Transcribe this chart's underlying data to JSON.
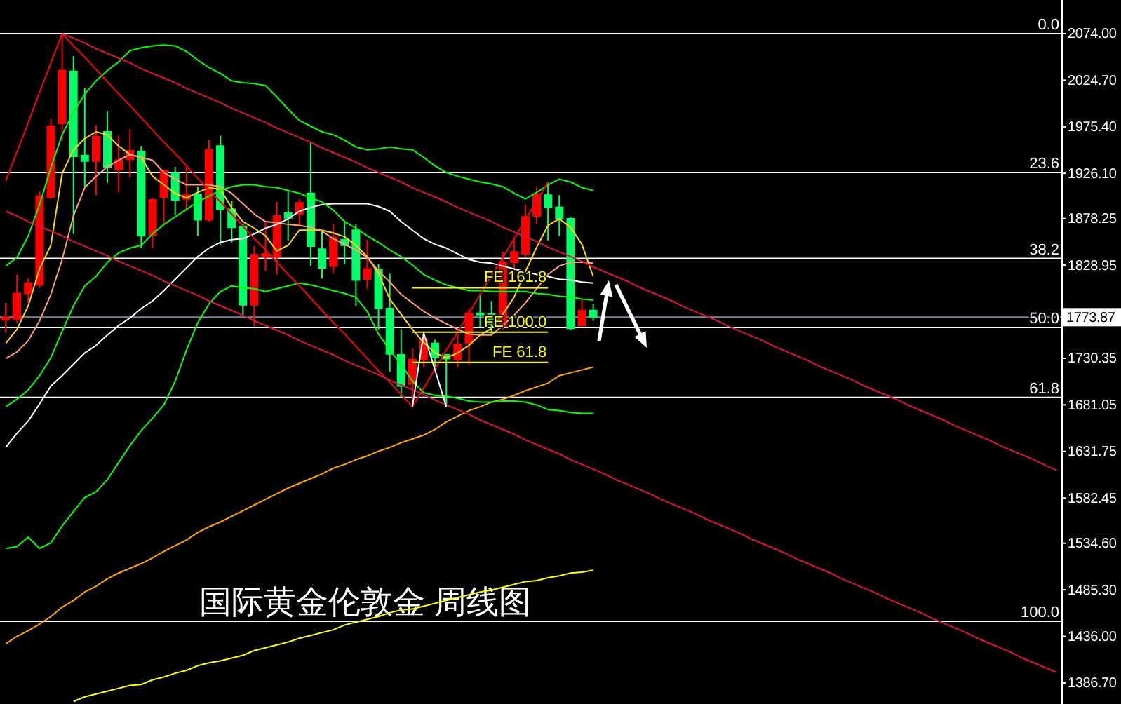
{
  "chart_data": {
    "type": "candlestick",
    "title": "国际黄金伦敦金 周线图",
    "categories": [
      null,
      null,
      null,
      null,
      null,
      null,
      null,
      null,
      null,
      null,
      null,
      null,
      null,
      null,
      null,
      null,
      null,
      null,
      null,
      null,
      null,
      null,
      null,
      null,
      null,
      null,
      null,
      null,
      null,
      null,
      null,
      null,
      null,
      null,
      null,
      null,
      null,
      null,
      null,
      null,
      null,
      null,
      null,
      null,
      null,
      null,
      null,
      null,
      null,
      null,
      null,
      null,
      null,
      null,
      null,
      null,
      null,
      null,
      null,
      null,
      null,
      null,
      null,
      null,
      null,
      null,
      null,
      null,
      null,
      null,
      null,
      null,
      null,
      null,
      null,
      null,
      null,
      null,
      null,
      null,
      null,
      null,
      null,
      null,
      null,
      null,
      null,
      null,
      null,
      null,
      null,
      null,
      null,
      null
    ],
    "ohlc": [
      [
        1771,
        1789,
        1757,
        1774
      ],
      [
        1772,
        1819,
        1768,
        1799
      ],
      [
        1799,
        1815,
        1789,
        1810
      ],
      [
        1808,
        1907,
        1805,
        1902
      ],
      [
        1901,
        1984,
        1899,
        1976
      ],
      [
        1979,
        2074,
        1961,
        2035
      ],
      [
        2034,
        2050,
        1862,
        1944
      ],
      [
        1945,
        2016,
        1912,
        1939
      ],
      [
        1939,
        1977,
        1903,
        1965
      ],
      [
        1970,
        1992,
        1916,
        1933
      ],
      [
        1930,
        1966,
        1906,
        1940
      ],
      [
        1941,
        1973,
        1922,
        1950
      ],
      [
        1949,
        1955,
        1847,
        1860
      ],
      [
        1861,
        1900,
        1847,
        1898
      ],
      [
        1901,
        1930,
        1872,
        1929
      ],
      [
        1926,
        1933,
        1882,
        1898
      ],
      [
        1899,
        1933,
        1887,
        1903
      ],
      [
        1904,
        1912,
        1860,
        1877
      ],
      [
        1877,
        1961,
        1875,
        1951
      ],
      [
        1955,
        1966,
        1851,
        1888
      ],
      [
        1888,
        1897,
        1853,
        1869
      ],
      [
        1870,
        1872,
        1776,
        1787
      ],
      [
        1787,
        1849,
        1764,
        1840
      ],
      [
        1838,
        1875,
        1823,
        1841
      ],
      [
        1838,
        1896,
        1819,
        1881
      ],
      [
        1884,
        1908,
        1855,
        1879
      ],
      [
        1883,
        1899,
        1870,
        1895
      ],
      [
        1905,
        1959,
        1828,
        1849
      ],
      [
        1846,
        1866,
        1815,
        1826
      ],
      [
        1828,
        1873,
        1820,
        1858
      ],
      [
        1856,
        1875,
        1830,
        1850
      ],
      [
        1866,
        1872,
        1786,
        1813
      ],
      [
        1814,
        1856,
        1804,
        1825
      ],
      [
        1824,
        1830,
        1761,
        1783
      ],
      [
        1783,
        1820,
        1716,
        1735
      ],
      [
        1734,
        1761,
        1689,
        1701
      ],
      [
        1703,
        1741,
        1679,
        1729
      ],
      [
        1729,
        1757,
        1721,
        1751
      ],
      [
        1746,
        1750,
        1721,
        1731
      ],
      [
        1734,
        1735,
        1679,
        1730
      ],
      [
        1729,
        1756,
        1721,
        1745
      ],
      [
        1746,
        1783,
        1724,
        1778
      ],
      [
        1778,
        1798,
        1763,
        1777
      ],
      [
        1777,
        1791,
        1756,
        1767
      ],
      [
        1764,
        1843,
        1761,
        1832
      ],
      [
        1832,
        1858,
        1818,
        1843
      ],
      [
        1841,
        1893,
        1837,
        1880
      ],
      [
        1881,
        1912,
        1872,
        1904
      ],
      [
        1903,
        1917,
        1855,
        1890
      ],
      [
        1890,
        1903,
        1860,
        1878
      ],
      [
        1878,
        1880,
        1760,
        1762
      ],
      [
        1765,
        1794,
        1764,
        1781
      ],
      [
        1781,
        1788,
        1770,
        1773.87
      ],
      null,
      null,
      null,
      null,
      null,
      null,
      null,
      null,
      null,
      null,
      null,
      null,
      null,
      null,
      null,
      null,
      null,
      null,
      null,
      null,
      null,
      null,
      null,
      null,
      null,
      null,
      null,
      null,
      null,
      null,
      null,
      null,
      null,
      null,
      null,
      null,
      null,
      null,
      null,
      null,
      null
    ],
    "colors": [
      "#ff0000",
      "#ff0000",
      "#ff0000",
      "#ff0000",
      "#ff0000",
      "#ff0000",
      "#00ff66",
      "#00ff66",
      "#ff0000",
      "#00ff66",
      "#ff0000",
      "#ff0000",
      "#00ff66",
      "#ff0000",
      "#ff0000",
      "#00ff66",
      "#ff0000",
      "#00ff66",
      "#ff0000",
      "#00ff66",
      "#00ff66",
      "#00ff66",
      "#ff0000",
      "#ff0000",
      "#ff0000",
      "#00ff66",
      "#ff0000",
      "#00ff66",
      "#00ff66",
      "#ff0000",
      "#00ff66",
      "#00ff66",
      "#ff0000",
      "#00ff66",
      "#00ff66",
      "#00ff66",
      "#ff0000",
      "#ff0000",
      "#00ff66",
      "#00ff66",
      "#ff0000",
      "#ff0000",
      "#00ff66",
      "#00ff66",
      "#ff0000",
      "#ff0000",
      "#ff0000",
      "#ff0000",
      "#00ff66",
      "#00ff66",
      "#00ff66",
      "#ff0000",
      "#00ff66",
      null,
      null,
      null,
      null,
      null,
      null,
      null,
      null,
      null,
      null,
      null,
      null,
      null,
      null,
      null,
      null,
      null,
      null,
      null,
      null,
      null,
      null,
      null,
      null,
      null,
      null,
      null,
      null,
      null,
      null,
      null,
      null,
      null,
      null,
      null,
      null,
      null,
      null,
      null,
      null,
      null
    ],
    "series": [
      {
        "type": "line",
        "color": "#ffd700",
        "values": [
          1746,
          1761,
          1786,
          1825,
          1850,
          1926,
          1951,
          1963,
          1970,
          1967,
          1955,
          1946,
          1943,
          1923,
          1914,
          1905,
          1900,
          1906,
          1911,
          1909,
          1890,
          1875,
          1868,
          1860,
          1844,
          1850,
          1866,
          1866,
          1866,
          1863,
          1859,
          1850,
          1838,
          1820,
          1793,
          1777,
          1761,
          1747,
          1736,
          1731,
          1736,
          1744,
          1755,
          1762,
          1777,
          1795,
          1822,
          1848,
          1871,
          1878,
          1869,
          1851,
          1817,
          null,
          null,
          null,
          null,
          null,
          null,
          null,
          null,
          null,
          null,
          null,
          null,
          null,
          null,
          null,
          null,
          null,
          null,
          null,
          null,
          null,
          null,
          null,
          null,
          null,
          null,
          null,
          null,
          null,
          null,
          null,
          null,
          null,
          null,
          null,
          null,
          null,
          null,
          null,
          null,
          null
        ]
      },
      {
        "type": "line",
        "color": "#ffa07a",
        "values": [
          1730,
          1737,
          1749,
          1770,
          1798,
          1835,
          1881,
          1911,
          1923,
          1933,
          1940,
          1946,
          1943,
          1940,
          1927,
          1920,
          1914,
          1914,
          1914,
          1912,
          1905,
          1894,
          1883,
          1875,
          1874,
          1872,
          1871,
          1869,
          1865,
          1857,
          1851,
          1845,
          1837,
          1823,
          1811,
          1798,
          1789,
          1780,
          1773,
          1767,
          1761,
          1756,
          1755,
          1755,
          1765,
          1776,
          1789,
          1804,
          1819,
          1828,
          1832,
          1832,
          1831,
          null,
          null,
          null,
          null,
          null,
          null,
          null,
          null,
          null,
          null,
          null,
          null,
          null,
          null,
          null,
          null,
          null,
          null,
          null,
          null,
          null,
          null,
          null,
          null,
          null,
          null,
          null,
          null,
          null,
          null,
          null,
          null,
          null,
          null,
          null,
          null,
          null,
          null,
          null,
          null,
          null
        ]
      },
      {
        "type": "line",
        "color": "#ffffff",
        "values": [
          1636,
          1651,
          1664,
          1682,
          1701,
          1712,
          1724,
          1736,
          1744,
          1755,
          1765,
          1773,
          1783,
          1791,
          1802,
          1814,
          1826,
          1838,
          1847,
          1853,
          1856,
          1857,
          1862,
          1868,
          1872,
          1878,
          1886,
          1890,
          1893,
          1894,
          1894,
          1894,
          1894,
          1891,
          1886,
          1875,
          1866,
          1857,
          1851,
          1847,
          1841,
          1835,
          1832,
          1831,
          1828,
          1825,
          1822,
          1819,
          1817,
          1814,
          1813,
          1811,
          1810,
          null,
          null,
          null,
          null,
          null,
          null,
          null,
          null,
          null,
          null,
          null,
          null,
          null,
          null,
          null,
          null,
          null,
          null,
          null,
          null,
          null,
          null,
          null,
          null,
          null,
          null,
          null,
          null,
          null,
          null,
          null,
          null,
          null,
          null,
          null,
          null,
          null,
          null,
          null,
          null,
          null
        ]
      },
      {
        "type": "line",
        "color": "#ffa500",
        "values": [
          1428,
          1436,
          1442,
          1449,
          1457,
          1467,
          1474,
          1483,
          1489,
          1497,
          1503,
          1508,
          1513,
          1519,
          1526,
          1532,
          1538,
          1546,
          1552,
          1557,
          1563,
          1569,
          1575,
          1581,
          1587,
          1593,
          1598,
          1603,
          1608,
          1614,
          1618,
          1623,
          1627,
          1632,
          1636,
          1641,
          1645,
          1649,
          1655,
          1663,
          1669,
          1675,
          1679,
          1684,
          1687,
          1691,
          1696,
          1700,
          1704,
          1712,
          1715,
          1718,
          1721,
          null,
          null,
          null,
          null,
          null,
          null,
          null,
          null,
          null,
          null,
          null,
          null,
          null,
          null,
          null,
          null,
          null,
          null,
          null,
          null,
          null,
          null,
          null,
          null,
          null,
          null,
          null,
          null,
          null,
          null,
          null,
          null,
          null,
          null,
          null,
          null,
          null,
          null,
          null,
          null,
          null
        ]
      },
      {
        "type": "line",
        "color": "#ffff00",
        "values": [
          null,
          null,
          null,
          null,
          null,
          null,
          1367,
          1372,
          1375,
          1378,
          1381,
          1384,
          1385,
          1390,
          1393,
          1397,
          1400,
          1405,
          1408,
          1410,
          1413,
          1416,
          1421,
          1424,
          1427,
          1430,
          1434,
          1437,
          1440,
          1443,
          1448,
          1451,
          1454,
          1457,
          1461,
          1464,
          1465,
          1468,
          1471,
          1474,
          1477,
          1480,
          1483,
          1485,
          1488,
          1491,
          1494,
          1495,
          1498,
          1500,
          1503,
          1504,
          1506,
          null,
          null,
          null,
          null,
          null,
          null,
          null,
          null,
          null,
          null,
          null,
          null,
          null,
          null,
          null,
          null,
          null,
          null,
          null,
          null,
          null,
          null,
          null,
          null,
          null,
          null,
          null,
          null,
          null,
          null,
          null,
          null,
          null,
          null,
          null,
          null,
          null,
          null,
          null,
          null,
          null
        ]
      },
      {
        "type": "line",
        "color": "#00ff00",
        "values": [
          1828,
          1837,
          1860,
          1893,
          1932,
          1967,
          1991,
          2010,
          2024,
          2035,
          2044,
          2056,
          2059,
          2061,
          2062,
          2061,
          2055,
          2046,
          2038,
          2032,
          2024,
          2022,
          2021,
          2019,
          2007,
          1994,
          1982,
          1976,
          1970,
          1967,
          1961,
          1954,
          1951,
          1952,
          1954,
          1952,
          1951,
          1943,
          1934,
          1927,
          1923,
          1920,
          1917,
          1915,
          1912,
          1905,
          1899,
          1906,
          1914,
          1920,
          1917,
          1911,
          1908,
          null,
          null,
          null,
          null,
          null,
          null,
          null,
          null,
          null,
          null,
          null,
          null,
          null,
          null,
          null,
          null,
          null,
          null,
          null,
          null,
          null,
          null,
          null,
          null,
          null,
          null,
          null,
          null,
          null,
          null,
          null,
          null,
          null,
          null,
          null,
          null,
          null,
          null,
          null,
          null,
          null
        ]
      },
      {
        "type": "line",
        "color": "#00ff00",
        "values": [
          1679,
          1687,
          1697,
          1712,
          1731,
          1759,
          1786,
          1807,
          1817,
          1832,
          1842,
          1847,
          1850,
          1862,
          1872,
          1880,
          1888,
          1896,
          1902,
          1908,
          1912,
          1914,
          1914,
          1912,
          1911,
          1908,
          1905,
          1900,
          1896,
          1887,
          1875,
          1868,
          1860,
          1853,
          1845,
          1838,
          1829,
          1819,
          1813,
          1808,
          1805,
          1802,
          1802,
          1801,
          1801,
          1801,
          1801,
          1799,
          1798,
          1796,
          1795,
          1793,
          1792,
          null,
          null,
          null,
          null,
          null,
          null,
          null,
          null,
          null,
          null,
          null,
          null,
          null,
          null,
          null,
          null,
          null,
          null,
          null,
          null,
          null,
          null,
          null,
          null,
          null,
          null,
          null,
          null,
          null,
          null,
          null,
          null,
          null,
          null,
          null,
          null,
          null,
          null,
          null,
          null,
          null
        ]
      },
      {
        "type": "line",
        "color": "#00ff00",
        "values": [
          1529,
          1531,
          1541,
          1529,
          1535,
          1553,
          1568,
          1583,
          1589,
          1602,
          1620,
          1638,
          1654,
          1667,
          1681,
          1706,
          1739,
          1768,
          1788,
          1801,
          1807,
          1805,
          1804,
          1801,
          1804,
          1807,
          1810,
          1808,
          1805,
          1802,
          1799,
          1795,
          1780,
          1756,
          1739,
          1724,
          1706,
          1694,
          1691,
          1690,
          1688,
          1685,
          1684,
          1684,
          1685,
          1685,
          1684,
          1681,
          1676,
          1675,
          1673,
          1672,
          1672,
          null,
          null,
          null,
          null,
          null,
          null,
          null,
          null,
          null,
          null,
          null,
          null,
          null,
          null,
          null,
          null,
          null,
          null,
          null,
          null,
          null,
          null,
          null,
          null,
          null,
          null,
          null,
          null,
          null,
          null,
          null,
          null,
          null,
          null,
          null,
          null,
          null,
          null,
          null,
          null,
          null
        ]
      },
      {
        "type": "line",
        "color": "#ff0000",
        "values": [
          1918,
          1949,
          1980,
          2012,
          2043,
          2074,
          2061,
          2049,
          2036,
          2023,
          2010,
          1998,
          1985,
          1972,
          1959,
          1947,
          1934,
          1921,
          1908,
          1896,
          1883,
          1870,
          1857,
          1845,
          1832,
          1819,
          1807,
          1794,
          1781,
          1768,
          1756,
          1743,
          1730,
          1717,
          1705,
          1692,
          1679,
          1699,
          1719,
          1739,
          1758,
          1778,
          1798,
          1818,
          1837,
          1857,
          1877,
          1897,
          1917,
          null,
          null,
          null,
          null,
          null,
          null,
          null,
          null,
          null,
          null,
          null,
          null,
          null,
          null,
          null,
          null,
          null,
          null,
          null,
          null,
          null,
          null,
          null,
          null,
          null,
          null,
          null,
          null,
          null,
          null,
          null,
          null,
          null,
          null,
          null,
          null,
          null,
          null,
          null,
          null,
          null,
          null,
          null,
          null,
          null
        ]
      },
      {
        "type": "line",
        "color": "#dc143c",
        "values": [
          null,
          null,
          null,
          null,
          null,
          2074,
          2069,
          2064,
          2058,
          2053,
          2048,
          2043,
          2037,
          2032,
          2027,
          2022,
          2016,
          2011,
          2006,
          2001,
          1995,
          1990,
          1985,
          1980,
          1974,
          1969,
          1964,
          1959,
          1953,
          1948,
          1943,
          1938,
          1932,
          1927,
          1922,
          1917,
          1911,
          1906,
          1901,
          1896,
          1890,
          1885,
          1880,
          1875,
          1869,
          1864,
          1859,
          1854,
          1848,
          1843,
          1838,
          1833,
          1827,
          1822,
          1817,
          1812,
          1806,
          1801,
          1796,
          1791,
          1785,
          1780,
          1775,
          1770,
          1764,
          1759,
          1754,
          1749,
          1743,
          1738,
          1733,
          1728,
          1722,
          1717,
          1712,
          1707,
          1701,
          1696,
          1691,
          1686,
          1680,
          1675,
          1670,
          1665,
          1659,
          1654,
          1649,
          1644,
          1638,
          1633,
          1628,
          1623,
          1617,
          1612
        ]
      },
      {
        "type": "line",
        "color": "#dc143c",
        "values": [
          1886,
          1881,
          1875,
          1870,
          1865,
          1860,
          1854,
          1849,
          1844,
          1839,
          1833,
          1828,
          1823,
          1818,
          1812,
          1807,
          1802,
          1797,
          1791,
          1786,
          1781,
          1776,
          1770,
          1765,
          1760,
          1755,
          1749,
          1744,
          1739,
          1734,
          1728,
          1723,
          1718,
          1713,
          1707,
          1702,
          1697,
          1692,
          1686,
          1681,
          1676,
          1671,
          1665,
          1660,
          1655,
          1650,
          1644,
          1639,
          1634,
          1629,
          1623,
          1618,
          1613,
          1608,
          1602,
          1597,
          1592,
          1587,
          1581,
          1576,
          1571,
          1566,
          1560,
          1555,
          1550,
          1545,
          1539,
          1534,
          1529,
          1524,
          1518,
          1513,
          1508,
          1503,
          1497,
          1492,
          1487,
          1482,
          1476,
          1471,
          1466,
          1461,
          1455,
          1450,
          1445,
          1440,
          1434,
          1429,
          1424,
          1419,
          1413,
          1408,
          1403,
          1398
        ]
      },
      {
        "type": "line",
        "color": "#ffffff",
        "values": [
          null,
          null,
          null,
          null,
          null,
          null,
          null,
          null,
          null,
          null,
          null,
          null,
          null,
          null,
          null,
          null,
          null,
          null,
          null,
          null,
          null,
          null,
          null,
          null,
          null,
          null,
          null,
          null,
          null,
          null,
          null,
          null,
          null,
          null,
          null,
          null,
          1679,
          1757,
          1718,
          1679,
          null,
          null,
          null,
          null,
          null,
          null,
          null,
          null,
          null,
          null,
          null,
          null,
          null,
          null,
          null,
          null,
          null,
          null,
          null,
          null,
          null,
          null,
          null,
          null,
          null,
          null,
          null,
          null,
          null,
          null,
          null,
          null,
          null,
          null,
          null,
          null,
          null,
          null,
          null,
          null,
          null,
          null,
          null,
          null,
          null,
          null,
          null,
          null,
          null,
          null,
          null,
          null,
          null,
          null
        ]
      },
      {
        "type": "line",
        "name": "FE 161.8",
        "color": "#ffff00",
        "values": [
          null,
          null,
          null,
          null,
          null,
          null,
          null,
          null,
          null,
          null,
          null,
          null,
          null,
          null,
          null,
          null,
          null,
          null,
          null,
          null,
          null,
          null,
          null,
          null,
          null,
          null,
          null,
          null,
          null,
          null,
          null,
          null,
          null,
          null,
          null,
          null,
          1805,
          1805,
          1805,
          1805,
          1805,
          1805,
          1805,
          1805,
          1805,
          1805,
          1805,
          1805,
          1805,
          null,
          null,
          null,
          null,
          null,
          null,
          null,
          null,
          null,
          null,
          null,
          null,
          null,
          null,
          null,
          null,
          null,
          null,
          null,
          null,
          null,
          null,
          null,
          null,
          null,
          null,
          null,
          null,
          null,
          null,
          null,
          null,
          null,
          null,
          null,
          null,
          null,
          null,
          null,
          null,
          null,
          null,
          null,
          null,
          null
        ]
      },
      {
        "type": "line",
        "name": "FE 100.0",
        "color": "#ffff00",
        "values": [
          null,
          null,
          null,
          null,
          null,
          null,
          null,
          null,
          null,
          null,
          null,
          null,
          null,
          null,
          null,
          null,
          null,
          null,
          null,
          null,
          null,
          null,
          null,
          null,
          null,
          null,
          null,
          null,
          null,
          null,
          null,
          null,
          null,
          null,
          null,
          null,
          1758,
          1758,
          1758,
          1758,
          1758,
          1758,
          1758,
          1758,
          1758,
          1758,
          1758,
          1758,
          1758,
          null,
          null,
          null,
          null,
          null,
          null,
          null,
          null,
          null,
          null,
          null,
          null,
          null,
          null,
          null,
          null,
          null,
          null,
          null,
          null,
          null,
          null,
          null,
          null,
          null,
          null,
          null,
          null,
          null,
          null,
          null,
          null,
          null,
          null,
          null,
          null,
          null,
          null,
          null,
          null,
          null,
          null,
          null,
          null,
          null
        ]
      },
      {
        "type": "line",
        "name": "FE 61.8",
        "color": "#ffff00",
        "values": [
          null,
          null,
          null,
          null,
          null,
          null,
          null,
          null,
          null,
          null,
          null,
          null,
          null,
          null,
          null,
          null,
          null,
          null,
          null,
          null,
          null,
          null,
          null,
          null,
          null,
          null,
          null,
          null,
          null,
          null,
          null,
          null,
          null,
          null,
          null,
          null,
          1726,
          1726,
          1726,
          1726,
          1726,
          1726,
          1726,
          1726,
          1726,
          1726,
          1726,
          1726,
          1726,
          null,
          null,
          null,
          null,
          null,
          null,
          null,
          null,
          null,
          null,
          null,
          null,
          null,
          null,
          null,
          null,
          null,
          null,
          null,
          null,
          null,
          null,
          null,
          null,
          null,
          null,
          null,
          null,
          null,
          null,
          null,
          null,
          null,
          null,
          null,
          null,
          null,
          null,
          null,
          null,
          null,
          null,
          null,
          null,
          null
        ]
      }
    ],
    "ylim": [
      1364.4,
      2109.6
    ],
    "yticks": [
      {
        "value": 2074,
        "label": "2074.00"
      },
      {
        "value": 2024.7,
        "label": "2024.70"
      },
      {
        "value": 1975.4,
        "label": "1975.40"
      },
      {
        "value": 1926.1,
        "label": "1926.10"
      },
      {
        "value": 1878.25,
        "label": "1878.25"
      },
      {
        "value": 1828.95,
        "label": "1828.95"
      },
      {
        "value": 1730.35,
        "label": "1730.35"
      },
      {
        "value": 1681.05,
        "label": "1681.05"
      },
      {
        "value": 1631.75,
        "label": "1631.75"
      },
      {
        "value": 1582.45,
        "label": "1582.45"
      },
      {
        "value": 1534.6,
        "label": "1534.60"
      },
      {
        "value": 1485.3,
        "label": "1485.30"
      },
      {
        "value": 1436,
        "label": "1436.00"
      },
      {
        "value": 1386.7,
        "label": "1386.70"
      }
    ],
    "ref_lines": [
      {
        "axis": "y",
        "value": 2074,
        "color": "#ffffff"
      },
      {
        "axis": "y",
        "value": 1927,
        "color": "#ffffff"
      },
      {
        "axis": "y",
        "value": 1836,
        "color": "#ffffff"
      },
      {
        "axis": "y",
        "value": 1763,
        "color": "#ffffff"
      },
      {
        "axis": "y",
        "value": 1689,
        "color": "#ffffff"
      },
      {
        "axis": "y",
        "value": 1452,
        "color": "#ffffff"
      },
      {
        "axis": "y",
        "value": 1773.87,
        "label": "1773.87",
        "color": "#778899"
      }
    ],
    "annotations": [
      {
        "text": "0.0",
        "y": 2074
      },
      {
        "text": "23.6",
        "y": 1927
      },
      {
        "text": "38.2",
        "y": 1836
      },
      {
        "text": "50.0",
        "y": 1763
      },
      {
        "text": "61.8",
        "y": 1689
      },
      {
        "text": "100.0",
        "y": 1452
      }
    ],
    "tick_labels": "y"
  }
}
